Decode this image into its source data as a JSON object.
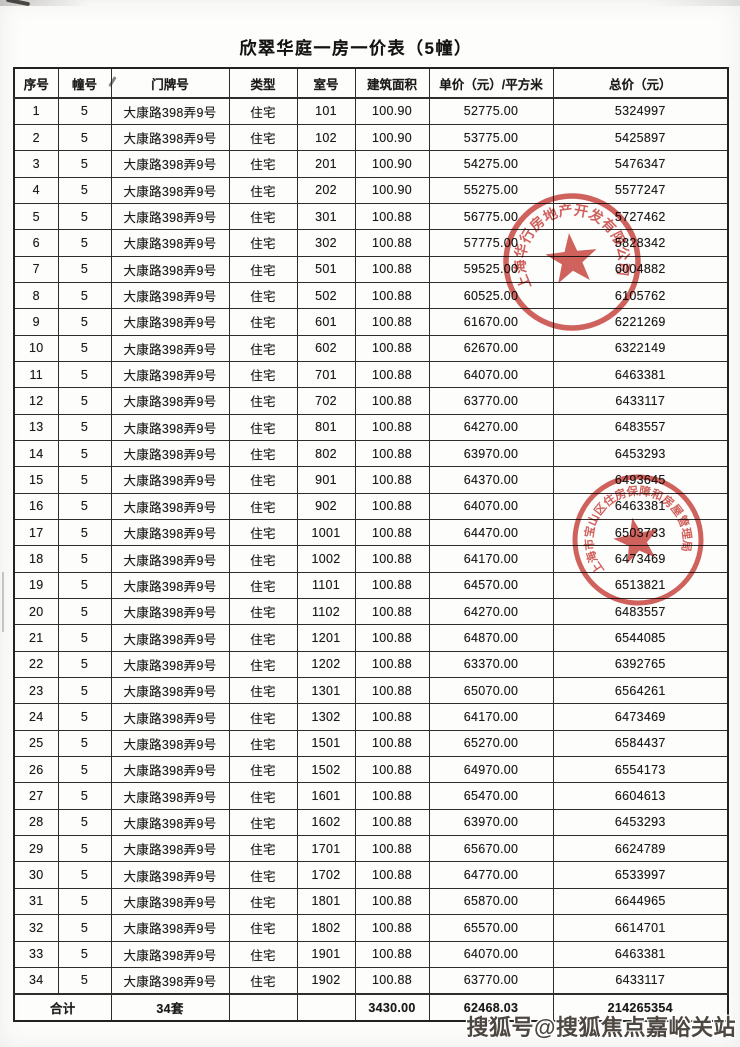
{
  "page": {
    "title": "欣翠华庭一房一价表（5幢）",
    "watermark": "搜狐号@搜狐焦点嘉峪关站",
    "background_color": "#fdfdfc"
  },
  "table": {
    "headers": [
      "序号",
      "幢号",
      "门牌号",
      "类型",
      "室号",
      "建筑面积",
      "单价（元）/平方米",
      "总价（元）"
    ],
    "rows": [
      [
        "1",
        "5",
        "大康路398弄9号",
        "住宅",
        "101",
        "100.90",
        "52775.00",
        "5324997"
      ],
      [
        "2",
        "5",
        "大康路398弄9号",
        "住宅",
        "102",
        "100.90",
        "53775.00",
        "5425897"
      ],
      [
        "3",
        "5",
        "大康路398弄9号",
        "住宅",
        "201",
        "100.90",
        "54275.00",
        "5476347"
      ],
      [
        "4",
        "5",
        "大康路398弄9号",
        "住宅",
        "202",
        "100.90",
        "55275.00",
        "5577247"
      ],
      [
        "5",
        "5",
        "大康路398弄9号",
        "住宅",
        "301",
        "100.88",
        "56775.00",
        "5727462"
      ],
      [
        "6",
        "5",
        "大康路398弄9号",
        "住宅",
        "302",
        "100.88",
        "57775.00",
        "5828342"
      ],
      [
        "7",
        "5",
        "大康路398弄9号",
        "住宅",
        "501",
        "100.88",
        "59525.00",
        "6004882"
      ],
      [
        "8",
        "5",
        "大康路398弄9号",
        "住宅",
        "502",
        "100.88",
        "60525.00",
        "6105762"
      ],
      [
        "9",
        "5",
        "大康路398弄9号",
        "住宅",
        "601",
        "100.88",
        "61670.00",
        "6221269"
      ],
      [
        "10",
        "5",
        "大康路398弄9号",
        "住宅",
        "602",
        "100.88",
        "62670.00",
        "6322149"
      ],
      [
        "11",
        "5",
        "大康路398弄9号",
        "住宅",
        "701",
        "100.88",
        "64070.00",
        "6463381"
      ],
      [
        "12",
        "5",
        "大康路398弄9号",
        "住宅",
        "702",
        "100.88",
        "63770.00",
        "6433117"
      ],
      [
        "13",
        "5",
        "大康路398弄9号",
        "住宅",
        "801",
        "100.88",
        "64270.00",
        "6483557"
      ],
      [
        "14",
        "5",
        "大康路398弄9号",
        "住宅",
        "802",
        "100.88",
        "63970.00",
        "6453293"
      ],
      [
        "15",
        "5",
        "大康路398弄9号",
        "住宅",
        "901",
        "100.88",
        "64370.00",
        "6493645"
      ],
      [
        "16",
        "5",
        "大康路398弄9号",
        "住宅",
        "902",
        "100.88",
        "64070.00",
        "6463381"
      ],
      [
        "17",
        "5",
        "大康路398弄9号",
        "住宅",
        "1001",
        "100.88",
        "64470.00",
        "6503733"
      ],
      [
        "18",
        "5",
        "大康路398弄9号",
        "住宅",
        "1002",
        "100.88",
        "64170.00",
        "6473469"
      ],
      [
        "19",
        "5",
        "大康路398弄9号",
        "住宅",
        "1101",
        "100.88",
        "64570.00",
        "6513821"
      ],
      [
        "20",
        "5",
        "大康路398弄9号",
        "住宅",
        "1102",
        "100.88",
        "64270.00",
        "6483557"
      ],
      [
        "21",
        "5",
        "大康路398弄9号",
        "住宅",
        "1201",
        "100.88",
        "64870.00",
        "6544085"
      ],
      [
        "22",
        "5",
        "大康路398弄9号",
        "住宅",
        "1202",
        "100.88",
        "63370.00",
        "6392765"
      ],
      [
        "23",
        "5",
        "大康路398弄9号",
        "住宅",
        "1301",
        "100.88",
        "65070.00",
        "6564261"
      ],
      [
        "24",
        "5",
        "大康路398弄9号",
        "住宅",
        "1302",
        "100.88",
        "64170.00",
        "6473469"
      ],
      [
        "25",
        "5",
        "大康路398弄9号",
        "住宅",
        "1501",
        "100.88",
        "65270.00",
        "6584437"
      ],
      [
        "26",
        "5",
        "大康路398弄9号",
        "住宅",
        "1502",
        "100.88",
        "64970.00",
        "6554173"
      ],
      [
        "27",
        "5",
        "大康路398弄9号",
        "住宅",
        "1601",
        "100.88",
        "65470.00",
        "6604613"
      ],
      [
        "28",
        "5",
        "大康路398弄9号",
        "住宅",
        "1602",
        "100.88",
        "63970.00",
        "6453293"
      ],
      [
        "29",
        "5",
        "大康路398弄9号",
        "住宅",
        "1701",
        "100.88",
        "65670.00",
        "6624789"
      ],
      [
        "30",
        "5",
        "大康路398弄9号",
        "住宅",
        "1702",
        "100.88",
        "64770.00",
        "6533997"
      ],
      [
        "31",
        "5",
        "大康路398弄9号",
        "住宅",
        "1801",
        "100.88",
        "65870.00",
        "6644965"
      ],
      [
        "32",
        "5",
        "大康路398弄9号",
        "住宅",
        "1802",
        "100.88",
        "65570.00",
        "6614701"
      ],
      [
        "33",
        "5",
        "大康路398弄9号",
        "住宅",
        "1901",
        "100.88",
        "64070.00",
        "6463381"
      ],
      [
        "34",
        "5",
        "大康路398弄9号",
        "住宅",
        "1902",
        "100.88",
        "63770.00",
        "6433117"
      ]
    ],
    "total": {
      "label": "合计",
      "units": "34套",
      "type": "",
      "room": "",
      "area": "3430.00",
      "unit_price": "62468.03",
      "total_price": "214265354"
    }
  },
  "stamps": [
    {
      "text": "上海华行房地产开发有限公司",
      "color": "#c8403a"
    },
    {
      "text": "上海市宝山区住房保障和房屋管理局",
      "color": "#c8403a"
    }
  ]
}
